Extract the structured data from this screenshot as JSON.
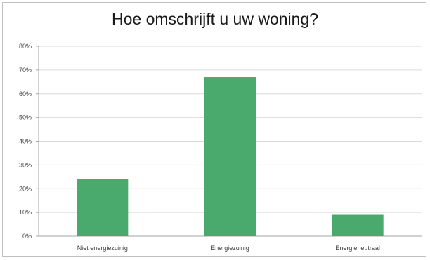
{
  "chart_data": {
    "type": "bar",
    "title": "Hoe omschrijft u uw woning?",
    "categories": [
      "Niet energiezuinig",
      "Energiezuinig",
      "Energieneutraal"
    ],
    "values": [
      24,
      67,
      9
    ],
    "unit": "%",
    "ylim": [
      0,
      80
    ],
    "yticks": [
      0,
      10,
      20,
      30,
      40,
      50,
      60,
      70,
      80
    ],
    "ytick_labels": [
      "0%",
      "10%",
      "20%",
      "30%",
      "40%",
      "50%",
      "60%",
      "70%",
      "80%"
    ],
    "xlabel": "",
    "ylabel": "",
    "grid": true,
    "legend": "none",
    "bar_color": "#4aa96c",
    "grid_color": "#d9d9d9"
  }
}
